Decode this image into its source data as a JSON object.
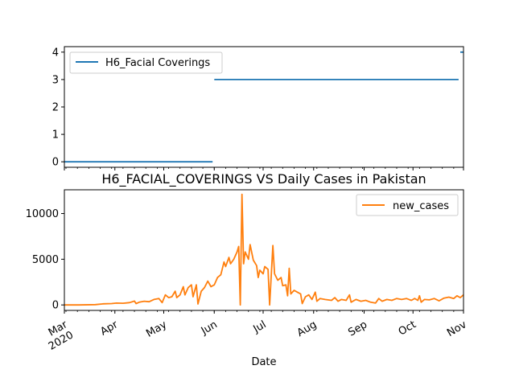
{
  "chart_data": [
    {
      "type": "line",
      "x_start": "2020-03-01",
      "x_end": "2020-11-01",
      "xlim": [
        "2020-03-01",
        "2020-11-01"
      ],
      "ylim": [
        -0.2,
        4.2
      ],
      "yticks": [
        0,
        1,
        2,
        3,
        4
      ],
      "grid": false,
      "legend_position": "top-left",
      "series": [
        {
          "name": "H6_Facial Coverings",
          "color": "#1f77b4",
          "points": [
            [
              "2020-03-01",
              0
            ],
            [
              "2020-05-31",
              0
            ],
            [
              "2020-06-01",
              3
            ],
            [
              "2020-10-29",
              3
            ],
            [
              "2020-10-30",
              4
            ],
            [
              "2020-11-01",
              4
            ]
          ]
        }
      ]
    },
    {
      "type": "line",
      "title": "H6_FACIAL_COVERINGS VS Daily Cases in Pakistan",
      "xlabel": "Date",
      "xlim": [
        "2020-03-01",
        "2020-11-01"
      ],
      "ylim": [
        -600,
        12600
      ],
      "yticks": [
        0,
        5000,
        10000
      ],
      "grid": false,
      "legend_position": "top-right",
      "x_tick_labels": [
        {
          "date": "2020-03-01",
          "month": "Mar",
          "year": "2020"
        },
        {
          "date": "2020-04-01",
          "month": "Apr",
          "year": ""
        },
        {
          "date": "2020-05-01",
          "month": "May",
          "year": ""
        },
        {
          "date": "2020-06-01",
          "month": "Jun",
          "year": ""
        },
        {
          "date": "2020-07-01",
          "month": "Jul",
          "year": ""
        },
        {
          "date": "2020-08-01",
          "month": "Aug",
          "year": ""
        },
        {
          "date": "2020-09-01",
          "month": "Sep",
          "year": ""
        },
        {
          "date": "2020-10-01",
          "month": "Oct",
          "year": ""
        },
        {
          "date": "2020-11-01",
          "month": "Nov",
          "year": ""
        }
      ],
      "series": [
        {
          "name": "new_cases",
          "color": "#ff7f0e",
          "points": [
            [
              "2020-03-01",
              0
            ],
            [
              "2020-03-10",
              0
            ],
            [
              "2020-03-20",
              30
            ],
            [
              "2020-03-25",
              120
            ],
            [
              "2020-03-30",
              150
            ],
            [
              "2020-04-02",
              200
            ],
            [
              "2020-04-06",
              180
            ],
            [
              "2020-04-10",
              250
            ],
            [
              "2020-04-13",
              420
            ],
            [
              "2020-04-14",
              150
            ],
            [
              "2020-04-16",
              300
            ],
            [
              "2020-04-19",
              400
            ],
            [
              "2020-04-22",
              350
            ],
            [
              "2020-04-25",
              600
            ],
            [
              "2020-04-28",
              700
            ],
            [
              "2020-04-30",
              250
            ],
            [
              "2020-05-02",
              1100
            ],
            [
              "2020-05-04",
              800
            ],
            [
              "2020-05-06",
              900
            ],
            [
              "2020-05-08",
              1500
            ],
            [
              "2020-05-09",
              800
            ],
            [
              "2020-05-11",
              1100
            ],
            [
              "2020-05-13",
              2000
            ],
            [
              "2020-05-14",
              1100
            ],
            [
              "2020-05-16",
              1900
            ],
            [
              "2020-05-18",
              2200
            ],
            [
              "2020-05-19",
              900
            ],
            [
              "2020-05-21",
              2200
            ],
            [
              "2020-05-22",
              100
            ],
            [
              "2020-05-24",
              1500
            ],
            [
              "2020-05-26",
              1900
            ],
            [
              "2020-05-28",
              2600
            ],
            [
              "2020-05-30",
              2000
            ],
            [
              "2020-06-01",
              2200
            ],
            [
              "2020-06-03",
              3000
            ],
            [
              "2020-06-05",
              3300
            ],
            [
              "2020-06-07",
              4700
            ],
            [
              "2020-06-08",
              4200
            ],
            [
              "2020-06-10",
              5200
            ],
            [
              "2020-06-11",
              4500
            ],
            [
              "2020-06-13",
              5000
            ],
            [
              "2020-06-15",
              5800
            ],
            [
              "2020-06-16",
              6400
            ],
            [
              "2020-06-17",
              0
            ],
            [
              "2020-06-18",
              12100
            ],
            [
              "2020-06-19",
              4500
            ],
            [
              "2020-06-20",
              5800
            ],
            [
              "2020-06-22",
              5000
            ],
            [
              "2020-06-23",
              6600
            ],
            [
              "2020-06-25",
              4900
            ],
            [
              "2020-06-27",
              4300
            ],
            [
              "2020-06-28",
              3000
            ],
            [
              "2020-06-29",
              3800
            ],
            [
              "2020-07-01",
              3400
            ],
            [
              "2020-07-02",
              4200
            ],
            [
              "2020-07-04",
              3900
            ],
            [
              "2020-07-05",
              0
            ],
            [
              "2020-07-07",
              6500
            ],
            [
              "2020-07-08",
              3400
            ],
            [
              "2020-07-10",
              2700
            ],
            [
              "2020-07-12",
              3000
            ],
            [
              "2020-07-13",
              2100
            ],
            [
              "2020-07-15",
              2200
            ],
            [
              "2020-07-16",
              1000
            ],
            [
              "2020-07-17",
              4000
            ],
            [
              "2020-07-18",
              1200
            ],
            [
              "2020-07-20",
              1600
            ],
            [
              "2020-07-22",
              1400
            ],
            [
              "2020-07-24",
              1200
            ],
            [
              "2020-07-25",
              150
            ],
            [
              "2020-07-27",
              900
            ],
            [
              "2020-07-29",
              1100
            ],
            [
              "2020-07-31",
              600
            ],
            [
              "2020-08-02",
              1400
            ],
            [
              "2020-08-03",
              400
            ],
            [
              "2020-08-05",
              700
            ],
            [
              "2020-08-08",
              600
            ],
            [
              "2020-08-12",
              500
            ],
            [
              "2020-08-14",
              800
            ],
            [
              "2020-08-16",
              400
            ],
            [
              "2020-08-18",
              600
            ],
            [
              "2020-08-21",
              500
            ],
            [
              "2020-08-23",
              1100
            ],
            [
              "2020-08-24",
              300
            ],
            [
              "2020-08-27",
              600
            ],
            [
              "2020-08-30",
              400
            ],
            [
              "2020-09-02",
              500
            ],
            [
              "2020-09-05",
              300
            ],
            [
              "2020-09-08",
              200
            ],
            [
              "2020-09-10",
              700
            ],
            [
              "2020-09-12",
              400
            ],
            [
              "2020-09-15",
              600
            ],
            [
              "2020-09-18",
              500
            ],
            [
              "2020-09-21",
              700
            ],
            [
              "2020-09-24",
              600
            ],
            [
              "2020-09-27",
              700
            ],
            [
              "2020-09-30",
              500
            ],
            [
              "2020-10-02",
              700
            ],
            [
              "2020-10-04",
              500
            ],
            [
              "2020-10-05",
              1000
            ],
            [
              "2020-10-06",
              300
            ],
            [
              "2020-10-08",
              600
            ],
            [
              "2020-10-11",
              550
            ],
            [
              "2020-10-14",
              700
            ],
            [
              "2020-10-17",
              450
            ],
            [
              "2020-10-20",
              750
            ],
            [
              "2020-10-23",
              850
            ],
            [
              "2020-10-26",
              700
            ],
            [
              "2020-10-28",
              1000
            ],
            [
              "2020-10-30",
              800
            ],
            [
              "2020-11-01",
              1100
            ]
          ]
        }
      ]
    }
  ]
}
